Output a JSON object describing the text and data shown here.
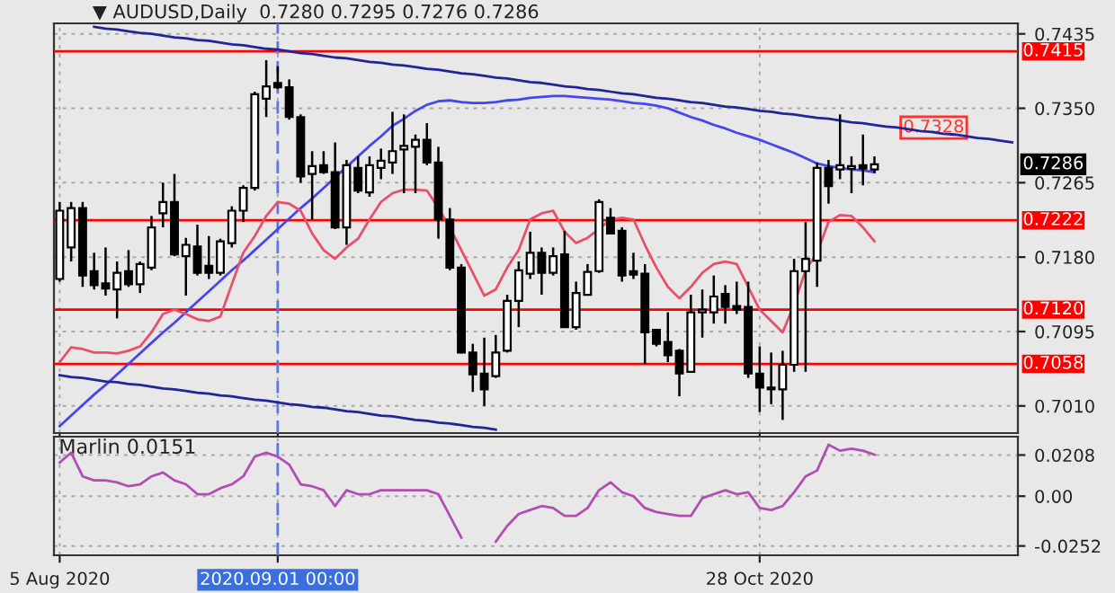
{
  "chart_data": [
    {
      "type": "candlestick",
      "title": "▼ AUDUSD,Daily  0.7280 0.7295 0.7276 0.7286",
      "categories": [
        "5 Aug 2020",
        null,
        null,
        null,
        null,
        null,
        null,
        null,
        null,
        null,
        null,
        null,
        null,
        null,
        null,
        null,
        null,
        null,
        null,
        "2020.09.01 00:00",
        null,
        null,
        null,
        null,
        null,
        null,
        null,
        null,
        null,
        null,
        null,
        null,
        null,
        null,
        null,
        null,
        null,
        null,
        null,
        null,
        null,
        null,
        null,
        null,
        null,
        null,
        null,
        null,
        null,
        null,
        null,
        null,
        null,
        null,
        null,
        null,
        null,
        null,
        null,
        null,
        null,
        "28 Oct 2020",
        null,
        null,
        null,
        null,
        null,
        null,
        null,
        null,
        null,
        null,
        null,
        null,
        null,
        null,
        null,
        null,
        null,
        null,
        null,
        null,
        null,
        null
      ],
      "ohlc": [
        [
          0.7155,
          0.7243,
          0.7152,
          0.7233
        ],
        [
          0.7191,
          0.7243,
          0.7175,
          0.7236
        ],
        [
          0.7236,
          0.7243,
          0.7146,
          0.7159
        ],
        [
          0.7164,
          0.7185,
          0.7143,
          0.7148
        ],
        [
          0.715,
          0.7191,
          0.7136,
          0.7144
        ],
        [
          0.7143,
          0.7175,
          0.711,
          0.7162
        ],
        [
          0.7164,
          0.7188,
          0.7146,
          0.7149
        ],
        [
          0.7149,
          0.7175,
          0.7139,
          0.7172
        ],
        [
          0.7168,
          0.7227,
          0.7165,
          0.7214
        ],
        [
          0.723,
          0.7265,
          0.7214,
          0.7243
        ],
        [
          0.7243,
          0.7275,
          0.7181,
          0.7183
        ],
        [
          0.7181,
          0.7202,
          0.7136,
          0.7194
        ],
        [
          0.7192,
          0.7217,
          0.7159,
          0.7162
        ],
        [
          0.717,
          0.7204,
          0.7155,
          0.7162
        ],
        [
          0.7162,
          0.7201,
          0.7159,
          0.7198
        ],
        [
          0.7196,
          0.7238,
          0.7191,
          0.7233
        ],
        [
          0.7233,
          0.7262,
          0.722,
          0.7259
        ],
        [
          0.7259,
          0.7369,
          0.7256,
          0.7366
        ],
        [
          0.7361,
          0.7405,
          0.734,
          0.7375
        ],
        [
          0.7379,
          0.7398,
          0.7372,
          0.7374
        ],
        [
          0.7374,
          0.7383,
          0.7337,
          0.734
        ],
        [
          0.734,
          0.7343,
          0.7265,
          0.7272
        ],
        [
          0.7275,
          0.7301,
          0.7223,
          0.7284
        ],
        [
          0.7285,
          0.7301,
          0.7275,
          0.7277
        ],
        [
          0.7277,
          0.7311,
          0.7212,
          0.7214
        ],
        [
          0.7214,
          0.7291,
          0.7194,
          0.7285
        ],
        [
          0.7282,
          0.7295,
          0.7253,
          0.7256
        ],
        [
          0.7254,
          0.7295,
          0.7249,
          0.7285
        ],
        [
          0.7282,
          0.7304,
          0.7269,
          0.729
        ],
        [
          0.7288,
          0.7346,
          0.7275,
          0.7301
        ],
        [
          0.7303,
          0.7343,
          0.7253,
          0.7307
        ],
        [
          0.7306,
          0.732,
          0.7253,
          0.7314
        ],
        [
          0.7314,
          0.7333,
          0.7285,
          0.7288
        ],
        [
          0.7288,
          0.7306,
          0.7201,
          0.7223
        ],
        [
          0.7223,
          0.7236,
          0.7165,
          0.7168
        ],
        [
          0.7168,
          0.7172,
          0.707,
          0.7071
        ],
        [
          0.7071,
          0.7081,
          0.7026,
          0.7046
        ],
        [
          0.7047,
          0.7088,
          0.701,
          0.7029
        ],
        [
          0.7044,
          0.7091,
          0.7042,
          0.7071
        ],
        [
          0.7073,
          0.7137,
          0.7071,
          0.713
        ],
        [
          0.713,
          0.7175,
          0.71,
          0.7165
        ],
        [
          0.7161,
          0.7209,
          0.7155,
          0.7185
        ],
        [
          0.7185,
          0.7191,
          0.7137,
          0.7162
        ],
        [
          0.7162,
          0.7191,
          0.7159,
          0.7181
        ],
        [
          0.7183,
          0.721,
          0.7099,
          0.71
        ],
        [
          0.71,
          0.7152,
          0.7097,
          0.7139
        ],
        [
          0.7137,
          0.7172,
          0.7136,
          0.7163
        ],
        [
          0.7164,
          0.7246,
          0.7162,
          0.7243
        ],
        [
          0.7225,
          0.7236,
          0.7206,
          0.7207
        ],
        [
          0.721,
          0.7214,
          0.7152,
          0.7159
        ],
        [
          0.7164,
          0.7185,
          0.7155,
          0.716
        ],
        [
          0.7161,
          0.7172,
          0.7058,
          0.7094
        ],
        [
          0.7097,
          0.7098,
          0.7078,
          0.7081
        ],
        [
          0.7083,
          0.7117,
          0.706,
          0.7068
        ],
        [
          0.7073,
          0.7075,
          0.7021,
          0.7047
        ],
        [
          0.7049,
          0.7137,
          0.7048,
          0.7117
        ],
        [
          0.7117,
          0.7143,
          0.7088,
          0.712
        ],
        [
          0.7117,
          0.7159,
          0.7104,
          0.7135
        ],
        [
          0.7138,
          0.7148,
          0.7104,
          0.7123
        ],
        [
          0.7124,
          0.7152,
          0.7115,
          0.712
        ],
        [
          0.7123,
          0.7152,
          0.7042,
          0.7047
        ],
        [
          0.7047,
          0.7078,
          0.7003,
          0.7031
        ],
        [
          0.7031,
          0.7071,
          0.7012,
          0.7029
        ],
        [
          0.7029,
          0.7073,
          0.6994,
          0.7057
        ],
        [
          0.7057,
          0.7178,
          0.7049,
          0.7164
        ],
        [
          0.7164,
          0.722,
          0.7049,
          0.7178
        ],
        [
          0.7176,
          0.7288,
          0.7146,
          0.7282
        ],
        [
          0.7282,
          0.7291,
          0.7241,
          0.7261
        ],
        [
          0.728,
          0.7343,
          0.7269,
          0.7285
        ],
        [
          0.7281,
          0.7295,
          0.7253,
          0.7284
        ],
        [
          0.7285,
          0.732,
          0.7262,
          0.7281
        ],
        [
          0.728,
          0.7295,
          0.7276,
          0.7286
        ],
        null,
        null,
        null,
        null,
        null,
        null,
        null,
        null,
        null,
        null,
        null,
        null
      ],
      "series": [
        {
          "type": "line",
          "color": "#4646ee",
          "values": [
            0.6987,
            0.6999,
            0.7011,
            0.7023,
            0.7034,
            0.7046,
            0.7058,
            0.707,
            0.7082,
            0.7094,
            0.7105,
            0.7117,
            0.7129,
            0.7141,
            0.7153,
            0.7165,
            0.7176,
            0.7188,
            0.72,
            0.7212,
            0.7224,
            0.7236,
            0.7247,
            0.7259,
            0.7271,
            0.7283,
            0.7295,
            0.7307,
            0.7318,
            0.733,
            0.7338,
            0.7347,
            0.7354,
            0.7358,
            0.7359,
            0.7357,
            0.7356,
            0.7356,
            0.7357,
            0.7359,
            0.736,
            0.7362,
            0.7363,
            0.7364,
            0.7364,
            0.7363,
            0.7362,
            0.7361,
            0.736,
            0.7358,
            0.7356,
            0.7355,
            0.7353,
            0.735,
            0.7345,
            0.734,
            0.7336,
            0.7331,
            0.7327,
            0.7322,
            0.7318,
            0.7314,
            0.7309,
            0.7304,
            0.7299,
            0.7293,
            0.7287,
            0.7284,
            0.7282,
            0.728,
            0.7279,
            0.7277,
            null,
            null,
            null,
            null,
            null,
            null,
            null,
            null,
            null,
            null,
            null,
            null
          ]
        },
        {
          "type": "line",
          "color": "#e8506a",
          "values": [
            0.706,
            0.7077,
            0.7075,
            0.7071,
            0.7071,
            0.707,
            0.7073,
            0.7078,
            0.7094,
            0.7115,
            0.712,
            0.7115,
            0.7109,
            0.7107,
            0.7112,
            0.7149,
            0.7185,
            0.7204,
            0.7227,
            0.7243,
            0.7241,
            0.7233,
            0.7207,
            0.7188,
            0.7178,
            0.7191,
            0.7201,
            0.7223,
            0.7243,
            0.7253,
            0.7257,
            0.7257,
            0.7256,
            0.7236,
            0.7214,
            0.7188,
            0.7162,
            0.7136,
            0.7143,
            0.7168,
            0.7188,
            0.7223,
            0.723,
            0.7233,
            0.7209,
            0.7196,
            0.7202,
            0.7212,
            0.7223,
            0.7225,
            0.7223,
            0.7194,
            0.7168,
            0.7146,
            0.7133,
            0.7146,
            0.7162,
            0.7172,
            0.7175,
            0.7172,
            0.7146,
            0.712,
            0.7107,
            0.7094,
            0.7126,
            0.7165,
            0.7185,
            0.722,
            0.7228,
            0.7227,
            0.7214,
            0.7198,
            null,
            null,
            null,
            null,
            null,
            null,
            null,
            null,
            null,
            null,
            null,
            null
          ]
        },
        {
          "type": "line",
          "color": "#23239a",
          "values": [
            null,
            null,
            null,
            0.7443,
            0.7441,
            0.744,
            0.7438,
            0.7436,
            0.7435,
            0.7433,
            0.7431,
            0.743,
            0.7428,
            0.7427,
            0.7425,
            0.7423,
            0.7422,
            0.742,
            0.7418,
            0.7417,
            0.7415,
            0.7413,
            0.7412,
            0.741,
            0.7408,
            0.7407,
            0.7405,
            0.7403,
            0.7402,
            0.74,
            0.7399,
            0.7397,
            0.7395,
            0.7394,
            0.7392,
            0.739,
            0.7389,
            0.7387,
            0.7385,
            0.7384,
            0.7382,
            0.738,
            0.7379,
            0.7377,
            0.7375,
            0.7374,
            0.7372,
            0.7371,
            0.7369,
            0.7367,
            0.7366,
            0.7364,
            0.7362,
            0.7361,
            0.7359,
            0.7357,
            0.7356,
            0.7354,
            0.7352,
            0.7351,
            0.7349,
            0.7347,
            0.7346,
            0.7344,
            0.7343,
            0.7341,
            0.7339,
            0.7338,
            0.7336,
            0.7334,
            0.7333,
            0.7331,
            0.7329,
            0.7328,
            0.7326,
            0.7324,
            0.7323,
            0.7321,
            0.732,
            0.7318,
            0.7316,
            0.7315,
            0.7313,
            0.7311
          ]
        },
        {
          "type": "line",
          "color": "#23239a",
          "values": [
            0.7045,
            0.7043,
            0.7042,
            0.704,
            0.7038,
            0.7037,
            0.7035,
            0.7034,
            0.7032,
            0.703,
            0.7029,
            0.7027,
            0.7025,
            0.7024,
            0.7022,
            0.7021,
            0.7019,
            0.7017,
            0.7016,
            0.7014,
            0.7012,
            0.7011,
            0.7009,
            0.7008,
            0.7006,
            0.7004,
            0.7003,
            0.7001,
            0.6999,
            0.6998,
            0.6996,
            0.6994,
            0.6993,
            0.6991,
            0.699,
            0.6988,
            0.6986,
            0.6985,
            0.6983,
            null,
            null,
            null,
            null,
            null,
            null,
            null,
            null,
            null,
            null,
            null,
            null,
            null,
            null,
            null,
            null,
            null,
            null,
            null,
            null,
            null,
            null,
            null,
            null,
            null,
            null,
            null,
            null,
            null,
            null,
            null,
            null,
            null,
            null,
            null,
            null,
            null,
            null,
            null,
            null,
            null,
            null,
            null,
            null,
            null
          ]
        }
      ],
      "ylim": [
        0.6979,
        0.7447
      ],
      "yticks": [
        {
          "value": 0.7435,
          "label": "0.7435"
        },
        {
          "value": 0.735,
          "label": "0.7350"
        },
        {
          "value": 0.7265,
          "label": "0.7265"
        },
        {
          "value": 0.718,
          "label": "0.7180"
        },
        {
          "value": 0.7095,
          "label": "0.7095"
        },
        {
          "value": 0.701,
          "label": "0.7010"
        }
      ],
      "ref_lines": [
        {
          "axis": "y",
          "value": 0.7415,
          "label": "0.7415",
          "color": "#ff0000"
        },
        {
          "axis": "y",
          "value": 0.7222,
          "label": "0.7222",
          "color": "#ff0000"
        },
        {
          "axis": "y",
          "value": 0.712,
          "label": "0.7120",
          "color": "#ff0000"
        },
        {
          "axis": "y",
          "value": 0.7058,
          "label": "0.7058",
          "color": "#ff0000"
        },
        {
          "axis": "x",
          "value": "2020.09.01 00:00",
          "color": "#5577ee",
          "line_style": "dashed"
        }
      ],
      "annotations": [
        {
          "text": "0.7328",
          "y": 0.7328
        },
        "0.7286"
      ],
      "grid": true,
      "tick_labels": "y"
    },
    {
      "type": "line",
      "title": "Marlin 0.0151",
      "categories": [
        "5 Aug 2020",
        null,
        null,
        null,
        null,
        null,
        null,
        null,
        null,
        null,
        null,
        null,
        null,
        null,
        null,
        null,
        null,
        null,
        null,
        "2020.09.01 00:00",
        null,
        null,
        null,
        null,
        null,
        null,
        null,
        null,
        null,
        null,
        null,
        null,
        null,
        null,
        null,
        null,
        null,
        null,
        null,
        null,
        null,
        null,
        null,
        null,
        null,
        null,
        null,
        null,
        null,
        null,
        null,
        null,
        null,
        null,
        null,
        null,
        null,
        null,
        null,
        null,
        null,
        "28 Oct 2020",
        null,
        null,
        null,
        null,
        null,
        null,
        null,
        null,
        null,
        null,
        null,
        null,
        null,
        null,
        null,
        null,
        null,
        null,
        null,
        null,
        null,
        null
      ],
      "series": [
        {
          "color": "#b34db3",
          "values": [
            0.017,
            0.022,
            0.01,
            0.008,
            0.008,
            0.007,
            0.005,
            0.006,
            0.01,
            0.012,
            0.008,
            0.006,
            0.001,
            0.001,
            0.004,
            0.006,
            0.01,
            0.02,
            0.022,
            0.02,
            0.016,
            0.006,
            0.005,
            0.003,
            -0.005,
            0.003,
            0.001,
            0.001,
            0.003,
            0.003,
            0.003,
            0.003,
            0.003,
            0.001,
            -0.01,
            -0.021,
            null,
            null,
            -0.023,
            -0.015,
            -0.009,
            -0.007,
            -0.005,
            -0.006,
            -0.01,
            -0.01,
            -0.006,
            0.003,
            0.007,
            0.002,
            0.0,
            -0.006,
            -0.008,
            -0.009,
            -0.01,
            -0.01,
            -0.001,
            0.001,
            0.003,
            0.001,
            0.002,
            -0.006,
            -0.007,
            -0.005,
            0.002,
            0.01,
            0.013,
            0.026,
            0.023,
            0.024,
            0.023,
            0.021,
            null,
            null,
            null,
            null,
            null,
            null,
            null,
            null,
            null,
            null,
            null,
            null
          ]
        }
      ],
      "ylim": [
        -0.0299,
        0.0301
      ],
      "yticks": [
        {
          "value": 0.0208,
          "label": "0.0208"
        },
        {
          "value": 0,
          "label": "0.00"
        },
        {
          "value": -0.0252,
          "label": "-0.0252"
        }
      ],
      "ref_lines": [
        {
          "axis": "x",
          "value": "2020.09.01 00:00",
          "color": "#5577ee",
          "line_style": "dashed"
        }
      ],
      "grid": true
    }
  ]
}
